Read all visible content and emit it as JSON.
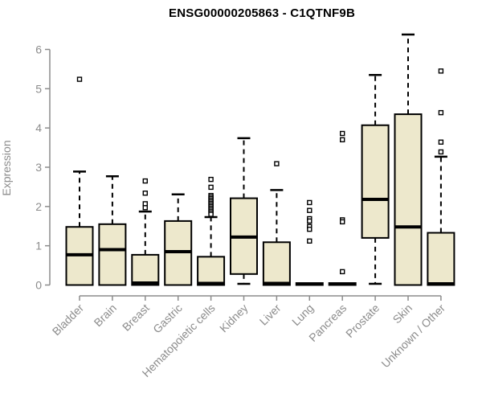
{
  "chart_data": {
    "type": "boxplot",
    "title": "ENSG00000205863 - C1QTNF9B",
    "ylabel": "Expression",
    "xlabel": "",
    "ylim": [
      0,
      6.5
    ],
    "yticks": [
      0,
      1,
      2,
      3,
      4,
      5,
      6
    ],
    "grid": false,
    "legend": false,
    "categories": [
      "Bladder",
      "Brain",
      "Breast",
      "Gastric",
      "Hematopoietic cells",
      "Kidney",
      "Liver",
      "Lung",
      "Pancreas",
      "Prostate",
      "Skin",
      "Unknown / Other"
    ],
    "boxes": [
      {
        "label": "Bladder",
        "low": 0,
        "q1": 0,
        "median": 0.77,
        "q3": 1.48,
        "high": 2.89,
        "outliers": [
          5.24
        ]
      },
      {
        "label": "Brain",
        "low": 0,
        "q1": 0,
        "median": 0.9,
        "q3": 1.55,
        "high": 2.77,
        "outliers": []
      },
      {
        "label": "Breast",
        "low": 0,
        "q1": 0,
        "median": 0.05,
        "q3": 0.77,
        "high": 1.87,
        "outliers": [
          2.65,
          2.34,
          2.07,
          1.97
        ]
      },
      {
        "label": "Gastric",
        "low": 0,
        "q1": 0,
        "median": 0.85,
        "q3": 1.63,
        "high": 2.31,
        "outliers": []
      },
      {
        "label": "Hematopoietic cells",
        "low": 0,
        "q1": 0,
        "median": 0.04,
        "q3": 0.72,
        "high": 1.73,
        "outliers": [
          2.69,
          2.49,
          2.28,
          2.24,
          2.2,
          2.16,
          2.12,
          2.08,
          2.04,
          2.0,
          1.96,
          1.92,
          1.88,
          1.84,
          1.8
        ]
      },
      {
        "label": "Kidney",
        "low": 0.03,
        "q1": 0.28,
        "median": 1.22,
        "q3": 2.21,
        "high": 3.74,
        "outliers": []
      },
      {
        "label": "Liver",
        "low": 0,
        "q1": 0,
        "median": 0.04,
        "q3": 1.09,
        "high": 2.42,
        "outliers": [
          3.09
        ]
      },
      {
        "label": "Lung",
        "low": 0,
        "q1": 0,
        "median": 0.02,
        "q3": 0.05,
        "high": 0.05,
        "outliers": [
          2.1,
          1.9,
          1.69,
          1.63,
          1.49,
          1.42,
          1.12
        ]
      },
      {
        "label": "Pancreas",
        "low": 0,
        "q1": 0,
        "median": 0.02,
        "q3": 0.05,
        "high": 0.05,
        "outliers": [
          3.86,
          3.7,
          1.66,
          1.61,
          0.34
        ]
      },
      {
        "label": "Prostate",
        "low": 0.03,
        "q1": 1.2,
        "median": 2.18,
        "q3": 4.07,
        "high": 5.35,
        "outliers": []
      },
      {
        "label": "Skin",
        "low": 0,
        "q1": 0,
        "median": 1.48,
        "q3": 4.35,
        "high": 6.38,
        "outliers": []
      },
      {
        "label": "Unknown / Other",
        "low": 0,
        "q1": 0,
        "median": 0.03,
        "q3": 1.33,
        "high": 3.27,
        "outliers": [
          5.45,
          4.39,
          3.64,
          3.39
        ]
      }
    ],
    "style": {
      "box_fill": "#EDE8CC",
      "box_border": "#000000",
      "median_color": "#000000",
      "whisker_color": "#000000",
      "outlier_color": "#000000",
      "axis_color": "#8C8C8C",
      "tick_label_color": "#8C8C8C",
      "title_color": "#000000",
      "background": "#FFFFFF"
    }
  }
}
